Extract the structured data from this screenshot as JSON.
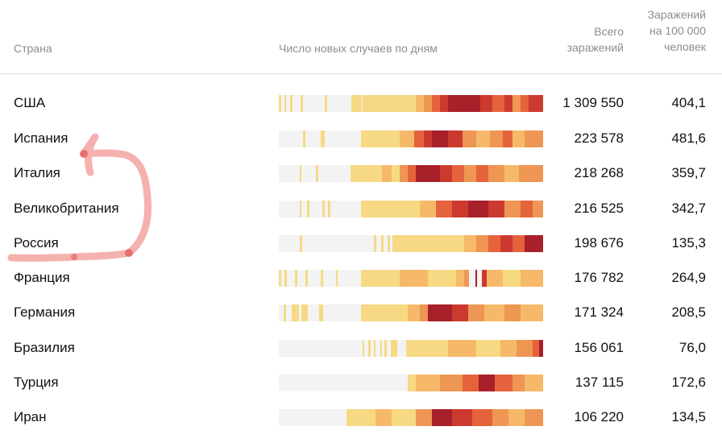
{
  "header": {
    "country": "Страна",
    "chart": "Число новых случаев по дням",
    "total_line1": "Всего",
    "total_line2": "заражений",
    "per100k_line1": "Заражений",
    "per100k_line2": "на 100 000",
    "per100k_line3": "человек"
  },
  "palette": [
    "#f3f3f3",
    "#f7d984",
    "#f6b96a",
    "#ee9653",
    "#e5633c",
    "#cc3a2f",
    "#a8202a"
  ],
  "rows": [
    {
      "country": "США",
      "total": "1 309 550",
      "per100k": "404,1"
    },
    {
      "country": "Испания",
      "total": "223 578",
      "per100k": "481,6"
    },
    {
      "country": "Италия",
      "total": "218 268",
      "per100k": "359,7"
    },
    {
      "country": "Великобритания",
      "total": "216 525",
      "per100k": "342,7"
    },
    {
      "country": "Россия",
      "total": "198 676",
      "per100k": "135,3"
    },
    {
      "country": "Франция",
      "total": "176 782",
      "per100k": "264,9"
    },
    {
      "country": "Германия",
      "total": "171 324",
      "per100k": "208,5"
    },
    {
      "country": "Бразилия",
      "total": "156 061",
      "per100k": "76,0"
    },
    {
      "country": "Турция",
      "total": "137 115",
      "per100k": "172,6"
    },
    {
      "country": "Иран",
      "total": "106 220",
      "per100k": "134,5"
    }
  ]
}
